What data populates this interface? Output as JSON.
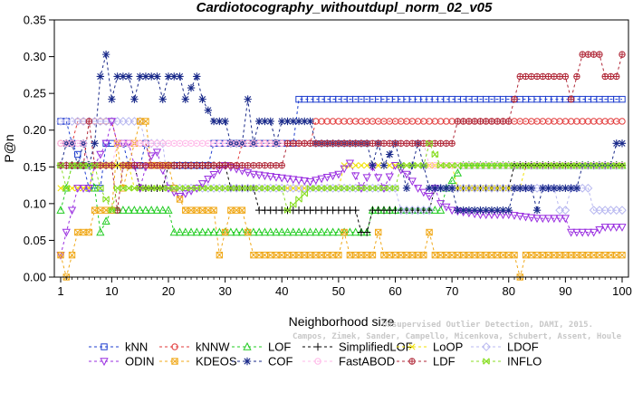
{
  "chart_data": {
    "type": "line",
    "title": "Cardiotocography_withoutdupl_norm_02_v05",
    "xlabel": "Neighborhood size",
    "ylabel": "P@n",
    "xlim": [
      1,
      100
    ],
    "ylim": [
      0,
      0.35
    ],
    "x_ticks": [
      1,
      10,
      20,
      30,
      40,
      50,
      60,
      70,
      80,
      90,
      100
    ],
    "y_ticks": [
      0.0,
      0.05,
      0.1,
      0.15,
      0.2,
      0.25,
      0.3,
      0.35
    ],
    "y_tick_labels": [
      "0.00",
      "0.05",
      "0.10",
      "0.15",
      "0.20",
      "0.25",
      "0.30",
      "0.35"
    ],
    "grid": false,
    "legend_position": "bottom",
    "credit": [
      "Campos, Zimek, Sander, Campello, Micenkova, Schubert, Assent, Houle",
      "Unsupervised Outlier Detection, DAMI, 2015."
    ],
    "series": [
      {
        "name": "kNN",
        "color": "#1f3fcf",
        "marker": "square",
        "segments": [
          [
            1,
            0.212
          ],
          [
            2,
            0.212
          ],
          [
            3,
            0.182
          ],
          [
            5,
            0.152
          ],
          [
            6,
            0.121
          ],
          [
            8,
            0.121
          ],
          [
            9,
            0.182
          ],
          [
            12,
            0.182
          ],
          [
            13,
            0.152
          ],
          [
            15,
            0.152
          ],
          [
            16,
            0.182
          ],
          [
            17,
            0.152
          ],
          [
            27,
            0.152
          ],
          [
            28,
            0.182
          ],
          [
            42,
            0.182
          ],
          [
            43,
            0.242
          ],
          [
            100,
            0.242
          ]
        ]
      },
      {
        "name": "kNNW",
        "color": "#e23a3a",
        "marker": "circle",
        "segments": [
          [
            1,
            0.182
          ],
          [
            3,
            0.182
          ],
          [
            4,
            0.212
          ],
          [
            10,
            0.212
          ],
          [
            11,
            0.182
          ],
          [
            16,
            0.182
          ],
          [
            17,
            0.152
          ],
          [
            32,
            0.152
          ],
          [
            33,
            0.182
          ],
          [
            45,
            0.182
          ],
          [
            46,
            0.212
          ],
          [
            100,
            0.212
          ]
        ]
      },
      {
        "name": "LOF",
        "color": "#22cc22",
        "marker": "triangle",
        "segments": [
          [
            1,
            0.091
          ],
          [
            2,
            0.121
          ],
          [
            3,
            0.152
          ],
          [
            6,
            0.152
          ],
          [
            7,
            0.121
          ],
          [
            8,
            0.061
          ],
          [
            10,
            0.091
          ],
          [
            20,
            0.091
          ],
          [
            21,
            0.061
          ],
          [
            55,
            0.061
          ],
          [
            56,
            0.091
          ],
          [
            68,
            0.091
          ],
          [
            69,
            0.121
          ],
          [
            72,
            0.152
          ],
          [
            100,
            0.152
          ]
        ]
      },
      {
        "name": "SimplifiedLOF",
        "color": "#000000",
        "marker": "plus",
        "segments": [
          [
            1,
            0.152
          ],
          [
            14,
            0.152
          ],
          [
            15,
            0.121
          ],
          [
            19,
            0.121
          ],
          [
            20,
            0.152
          ],
          [
            30,
            0.152
          ],
          [
            31,
            0.121
          ],
          [
            35,
            0.121
          ],
          [
            36,
            0.091
          ],
          [
            53,
            0.091
          ],
          [
            54,
            0.061
          ],
          [
            55,
            0.061
          ],
          [
            56,
            0.091
          ],
          [
            66,
            0.091
          ],
          [
            67,
            0.121
          ],
          [
            80,
            0.121
          ],
          [
            81,
            0.152
          ],
          [
            100,
            0.152
          ]
        ]
      },
      {
        "name": "LoOP",
        "color": "#f2e200",
        "marker": "x",
        "segments": [
          [
            1,
            0.121
          ],
          [
            6,
            0.121
          ],
          [
            7,
            0.152
          ],
          [
            13,
            0.152
          ],
          [
            14,
            0.121
          ],
          [
            50,
            0.121
          ],
          [
            51,
            0.152
          ],
          [
            70,
            0.152
          ],
          [
            71,
            0.121
          ],
          [
            82,
            0.121
          ],
          [
            83,
            0.152
          ],
          [
            100,
            0.152
          ]
        ]
      },
      {
        "name": "LDOF",
        "color": "#b8b8f0",
        "marker": "diamond",
        "segments": [
          [
            1,
            0.212
          ],
          [
            15,
            0.212
          ],
          [
            16,
            0.182
          ],
          [
            19,
            0.182
          ],
          [
            20,
            0.121
          ],
          [
            60,
            0.121
          ],
          [
            61,
            0.091
          ],
          [
            66,
            0.091
          ],
          [
            67,
            0.121
          ],
          [
            88,
            0.121
          ],
          [
            89,
            0.091
          ],
          [
            90,
            0.091
          ],
          [
            91,
            0.121
          ],
          [
            94,
            0.121
          ],
          [
            95,
            0.091
          ],
          [
            100,
            0.091
          ]
        ]
      },
      {
        "name": "ODIN",
        "color": "#9a2fe0",
        "marker": "triangle-down",
        "segments": [
          [
            1,
            0.03
          ],
          [
            2,
            0.061
          ],
          [
            3,
            0.091
          ],
          [
            4,
            0.121
          ],
          [
            6,
            0.121
          ],
          [
            7,
            0.152
          ],
          [
            9,
            0.182
          ],
          [
            10,
            0.212
          ],
          [
            11,
            0.182
          ],
          [
            13,
            0.182
          ],
          [
            14,
            0.152
          ],
          [
            15,
            0.121
          ],
          [
            16,
            0.15
          ],
          [
            17,
            0.165
          ],
          [
            18,
            0.17
          ],
          [
            20,
            0.121
          ],
          [
            22,
            0.11
          ],
          [
            25,
            0.121
          ],
          [
            30,
            0.152
          ],
          [
            35,
            0.14
          ],
          [
            40,
            0.135
          ],
          [
            45,
            0.13
          ],
          [
            50,
            0.14
          ],
          [
            52,
            0.155
          ],
          [
            54,
            0.121
          ],
          [
            56,
            0.15
          ],
          [
            58,
            0.121
          ],
          [
            60,
            0.152
          ],
          [
            62,
            0.14
          ],
          [
            64,
            0.121
          ],
          [
            66,
            0.11
          ],
          [
            67,
            0.121
          ],
          [
            68,
            0.1
          ],
          [
            70,
            0.091
          ],
          [
            75,
            0.085
          ],
          [
            80,
            0.085
          ],
          [
            85,
            0.08
          ],
          [
            90,
            0.08
          ],
          [
            91,
            0.061
          ],
          [
            95,
            0.061
          ],
          [
            97,
            0.068
          ],
          [
            100,
            0.068
          ]
        ]
      },
      {
        "name": "KDEOS",
        "color": "#f0a818",
        "marker": "square-x",
        "segments": [
          [
            1,
            0.03
          ],
          [
            2,
            0.0
          ],
          [
            3,
            0.03
          ],
          [
            4,
            0.061
          ],
          [
            6,
            0.061
          ],
          [
            7,
            0.091
          ],
          [
            10,
            0.091
          ],
          [
            11,
            0.182
          ],
          [
            12,
            0.121
          ],
          [
            13,
            0.152
          ],
          [
            14,
            0.182
          ],
          [
            15,
            0.212
          ],
          [
            16,
            0.212
          ],
          [
            17,
            0.152
          ],
          [
            20,
            0.152
          ],
          [
            21,
            0.121
          ],
          [
            23,
            0.091
          ],
          [
            28,
            0.091
          ],
          [
            29,
            0.03
          ],
          [
            30,
            0.061
          ],
          [
            31,
            0.091
          ],
          [
            33,
            0.091
          ],
          [
            34,
            0.061
          ],
          [
            35,
            0.03
          ],
          [
            50,
            0.03
          ],
          [
            51,
            0.061
          ],
          [
            52,
            0.03
          ],
          [
            56,
            0.03
          ],
          [
            57,
            0.061
          ],
          [
            58,
            0.03
          ],
          [
            65,
            0.03
          ],
          [
            66,
            0.061
          ],
          [
            67,
            0.03
          ],
          [
            81,
            0.03
          ],
          [
            82,
            0.0
          ],
          [
            83,
            0.03
          ],
          [
            100,
            0.03
          ]
        ]
      },
      {
        "name": "COF",
        "color": "#1a2a8a",
        "marker": "star",
        "segments": [
          [
            1,
            0.152
          ],
          [
            2,
            0.182
          ],
          [
            3,
            0.182
          ],
          [
            4,
            0.152
          ],
          [
            5,
            0.182
          ],
          [
            6,
            0.152
          ],
          [
            7,
            0.182
          ],
          [
            8,
            0.273
          ],
          [
            9,
            0.303
          ],
          [
            10,
            0.242
          ],
          [
            11,
            0.273
          ],
          [
            13,
            0.273
          ],
          [
            14,
            0.242
          ],
          [
            15,
            0.273
          ],
          [
            18,
            0.273
          ],
          [
            19,
            0.242
          ],
          [
            20,
            0.273
          ],
          [
            22,
            0.273
          ],
          [
            23,
            0.242
          ],
          [
            25,
            0.273
          ],
          [
            26,
            0.242
          ],
          [
            28,
            0.212
          ],
          [
            30,
            0.212
          ],
          [
            31,
            0.182
          ],
          [
            33,
            0.182
          ],
          [
            34,
            0.242
          ],
          [
            35,
            0.182
          ],
          [
            36,
            0.212
          ],
          [
            38,
            0.212
          ],
          [
            39,
            0.182
          ],
          [
            40,
            0.212
          ],
          [
            45,
            0.212
          ],
          [
            46,
            0.182
          ],
          [
            55,
            0.182
          ],
          [
            56,
            0.152
          ],
          [
            57,
            0.182
          ],
          [
            58,
            0.152
          ],
          [
            60,
            0.182
          ],
          [
            61,
            0.152
          ],
          [
            62,
            0.121
          ],
          [
            63,
            0.152
          ],
          [
            64,
            0.182
          ],
          [
            66,
            0.121
          ],
          [
            70,
            0.121
          ],
          [
            71,
            0.091
          ],
          [
            80,
            0.091
          ],
          [
            81,
            0.121
          ],
          [
            84,
            0.121
          ],
          [
            85,
            0.091
          ],
          [
            86,
            0.121
          ],
          [
            92,
            0.121
          ],
          [
            93,
            0.152
          ],
          [
            98,
            0.152
          ],
          [
            99,
            0.182
          ],
          [
            100,
            0.182
          ]
        ]
      },
      {
        "name": "FastABOD",
        "color": "#ffb8e8",
        "marker": "circle-dot",
        "segments": [
          [
            1,
            0.182
          ],
          [
            5,
            0.182
          ],
          [
            6,
            0.152
          ],
          [
            10,
            0.152
          ],
          [
            11,
            0.182
          ],
          [
            65,
            0.182
          ],
          [
            66,
            0.152
          ],
          [
            100,
            0.152
          ]
        ]
      },
      {
        "name": "LDF",
        "color": "#b02838",
        "marker": "circle-plus",
        "segments": [
          [
            1,
            0.152
          ],
          [
            5,
            0.152
          ],
          [
            6,
            0.212
          ],
          [
            7,
            0.152
          ],
          [
            10,
            0.152
          ],
          [
            11,
            0.091
          ],
          [
            12,
            0.152
          ],
          [
            20,
            0.152
          ],
          [
            40,
            0.152
          ],
          [
            41,
            0.182
          ],
          [
            70,
            0.182
          ],
          [
            71,
            0.212
          ],
          [
            80,
            0.212
          ],
          [
            81,
            0.242
          ],
          [
            82,
            0.273
          ],
          [
            90,
            0.273
          ],
          [
            91,
            0.242
          ],
          [
            92,
            0.273
          ],
          [
            93,
            0.303
          ],
          [
            96,
            0.303
          ],
          [
            97,
            0.273
          ],
          [
            99,
            0.273
          ],
          [
            100,
            0.303
          ]
        ]
      },
      {
        "name": "INFLO",
        "color": "#88dd22",
        "marker": "box-x",
        "segments": [
          [
            1,
            0.152
          ],
          [
            2,
            0.121
          ],
          [
            3,
            0.152
          ],
          [
            7,
            0.152
          ],
          [
            8,
            0.121
          ],
          [
            10,
            0.091
          ],
          [
            11,
            0.121
          ],
          [
            40,
            0.121
          ],
          [
            41,
            0.091
          ],
          [
            45,
            0.121
          ],
          [
            60,
            0.121
          ],
          [
            61,
            0.152
          ],
          [
            65,
            0.152
          ],
          [
            66,
            0.182
          ],
          [
            68,
            0.152
          ],
          [
            100,
            0.152
          ]
        ]
      }
    ]
  }
}
